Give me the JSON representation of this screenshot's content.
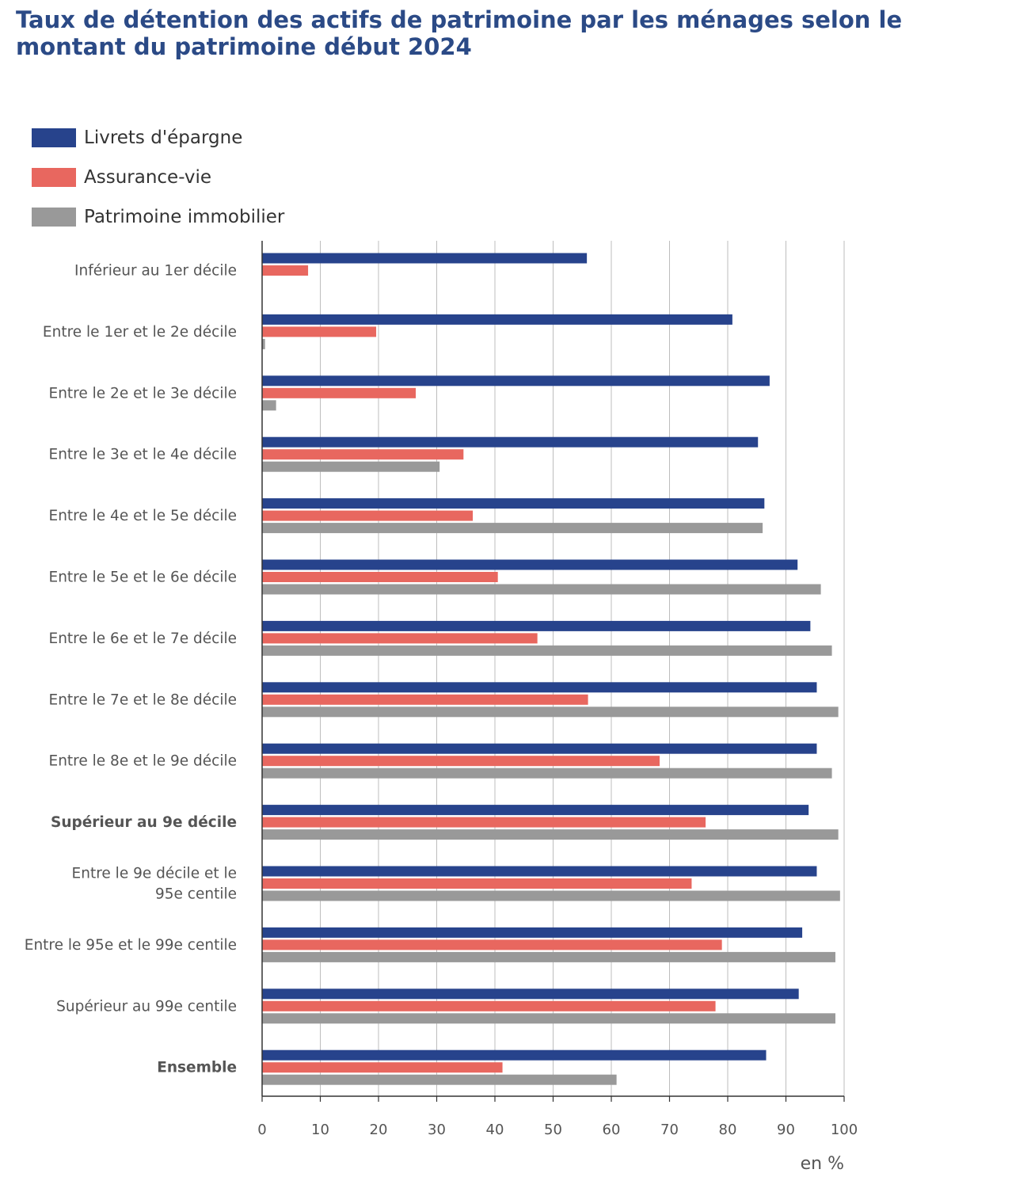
{
  "chart_data": {
    "type": "bar",
    "orientation": "horizontal",
    "title": "Taux de détention des actifs de patrimoine par les ménages selon le montant du patrimoine début 2024",
    "unit_label": "en %",
    "xlim": [
      0,
      100
    ],
    "x_ticks": [
      0,
      10,
      20,
      30,
      40,
      50,
      60,
      70,
      80,
      90,
      100
    ],
    "grid": true,
    "legend_position": "top-left",
    "categories": [
      {
        "label": [
          "Inférieur au 1er décile"
        ],
        "bold": false
      },
      {
        "label": [
          "Entre le 1er et le 2e décile"
        ],
        "bold": false
      },
      {
        "label": [
          "Entre le 2e et le 3e décile"
        ],
        "bold": false
      },
      {
        "label": [
          "Entre le 3e et le 4e décile"
        ],
        "bold": false
      },
      {
        "label": [
          "Entre le 4e et le 5e décile"
        ],
        "bold": false
      },
      {
        "label": [
          "Entre le 5e et le 6e décile"
        ],
        "bold": false
      },
      {
        "label": [
          "Entre le 6e et le 7e décile"
        ],
        "bold": false
      },
      {
        "label": [
          "Entre le 7e et le 8e décile"
        ],
        "bold": false
      },
      {
        "label": [
          "Entre le 8e et le 9e décile"
        ],
        "bold": false
      },
      {
        "label": [
          "Supérieur au 9e décile"
        ],
        "bold": true
      },
      {
        "label": [
          "Entre le 9e décile et le",
          "95e centile"
        ],
        "bold": false
      },
      {
        "label": [
          "Entre le 95e et le 99e centile"
        ],
        "bold": false
      },
      {
        "label": [
          "Supérieur au 99e centile"
        ],
        "bold": false
      },
      {
        "label": [
          "Ensemble"
        ],
        "bold": true
      }
    ],
    "series": [
      {
        "name": "Livrets d'épargne",
        "color": "#27438c",
        "values": [
          55.8,
          80.8,
          87.2,
          85.2,
          86.3,
          92.0,
          94.2,
          95.3,
          95.3,
          93.9,
          95.3,
          92.8,
          92.2,
          86.6
        ]
      },
      {
        "name": "Assurance-vie",
        "color": "#e8675f",
        "values": [
          7.9,
          19.6,
          26.4,
          34.6,
          36.2,
          40.5,
          47.3,
          56.0,
          68.3,
          76.2,
          73.8,
          79.0,
          77.9,
          41.3
        ]
      },
      {
        "name": "Patrimoine immobilier",
        "color": "#999999",
        "values": [
          0.0,
          0.5,
          2.4,
          30.5,
          86.0,
          96.0,
          97.9,
          99.0,
          97.9,
          99.0,
          99.3,
          98.5,
          98.5,
          60.9
        ]
      }
    ]
  }
}
